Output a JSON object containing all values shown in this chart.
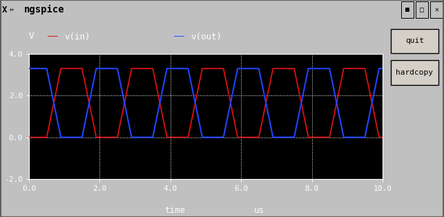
{
  "title_bar": "ngspice",
  "title_bar_color": "#d4aa00",
  "window_bg": "#c0c0c0",
  "plot_bg": "#000000",
  "grid_color": "#ffffff",
  "ylabel": "V",
  "xlabel_left": "time",
  "xlabel_right": "us",
  "xlim": [
    0,
    10
  ],
  "ylim": [
    -2.0,
    4.0
  ],
  "yticks": [
    -2.0,
    0.0,
    2.0,
    4.0
  ],
  "xticks": [
    0.0,
    2.0,
    4.0,
    6.0,
    8.0,
    10.0
  ],
  "vin_color": "#dd1111",
  "vout_color": "#2244ff",
  "vin_label": "v(in)",
  "vout_label": "v(out)",
  "signal_high": 3.3,
  "signal_low": 0.0,
  "period": 2.0,
  "rise_time": 0.4,
  "vin_low_start": 0.5,
  "button_bg": "#d4d0c8",
  "button1_text": "quit",
  "button2_text": "hardcopy",
  "figwidth": 6.43,
  "figheight": 3.14,
  "dpi": 100
}
